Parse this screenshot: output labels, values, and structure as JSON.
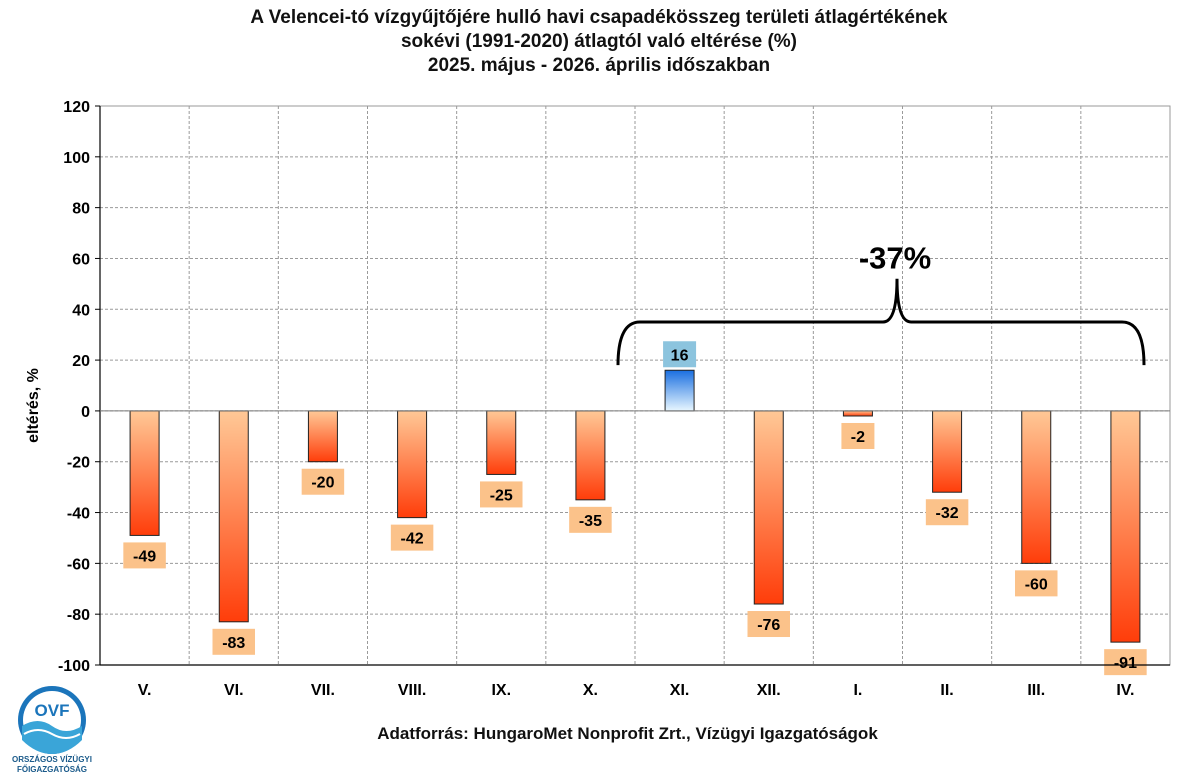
{
  "chart_data": {
    "type": "bar",
    "title": [
      "A Velencei-tó vízgyűjtőjére hulló havi csapadékösszeg területi átlagértékének",
      "sokévi (1991-2020) átlagtól való eltérése (%)",
      "2025. május - 2026. április időszakban"
    ],
    "xlabel": "",
    "ylabel": "eltérés, %",
    "ylim": [
      -100,
      120
    ],
    "yticks": [
      120,
      100,
      80,
      60,
      40,
      20,
      0,
      -20,
      -40,
      -60,
      -80,
      -100
    ],
    "grid": true,
    "categories": [
      "V.",
      "VI.",
      "VII.",
      "VIII.",
      "IX.",
      "X.",
      "XI.",
      "XII.",
      "I.",
      "II.",
      "III.",
      "IV."
    ],
    "values": [
      -49,
      -83,
      -20,
      -42,
      -25,
      -35,
      16,
      -76,
      -2,
      -32,
      -60,
      -91
    ],
    "colors": {
      "negative": "#ff3d0a",
      "negative_light": "#ffc896",
      "positive": "#1a6fe0",
      "positive_light": "#e8f7ff",
      "label_negative": "#fbc28a",
      "label_positive": "#8cc4de"
    },
    "annotation": {
      "text": "-37%",
      "from_category": "XI.",
      "to_category": "IV."
    }
  },
  "source": "Adatforrás: HungaroMet Nonprofit Zrt., Vízügyi Igazgatóságok",
  "logo": {
    "text": "OVF",
    "caption": [
      "ORSZÁGOS VÍZÜGYI",
      "FŐIGAZGATÓSÁG"
    ]
  }
}
